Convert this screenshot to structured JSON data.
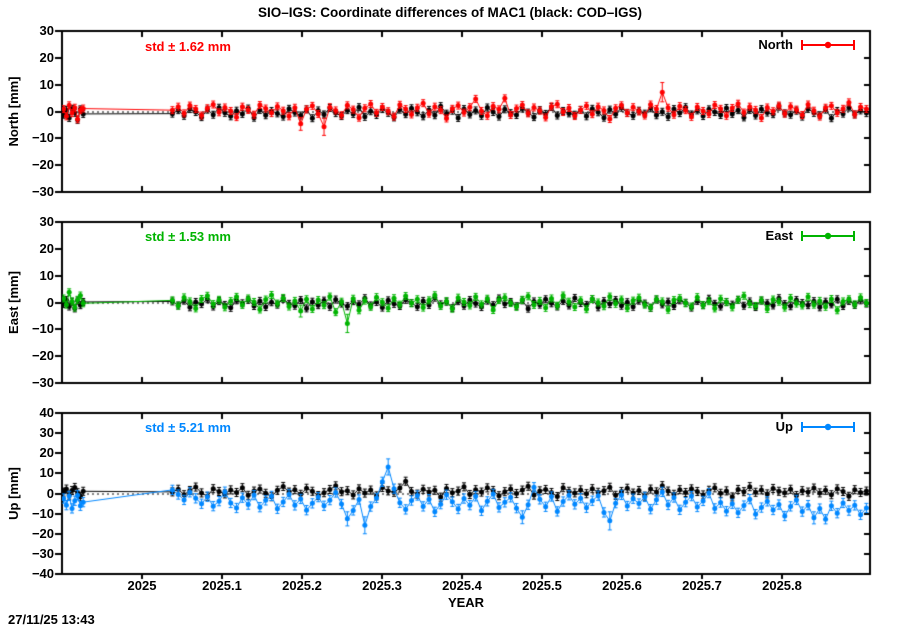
{
  "title": "SIO–IGS: Coordinate differences of MAC1 (black: COD–IGS)",
  "timestamp": "27/11/25 13:43",
  "xaxis": {
    "label": "YEAR",
    "range": [
      2024.9,
      2025.91
    ],
    "tick_values": [
      2025,
      2025.1,
      2025.2,
      2025.3,
      2025.4,
      2025.5,
      2025.6,
      2025.7,
      2025.8
    ],
    "tick_labels": [
      "2025",
      "2025.1",
      "2025.2",
      "2025.3",
      "2025.4",
      "2025.5",
      "2025.6",
      "2025.7",
      "2025.8"
    ]
  },
  "chart_data": [
    {
      "type": "scatter",
      "style": "connected points with error bars",
      "ylabel": "North [mm]",
      "std": 1.62,
      "std_label": "std ± 1.62 mm",
      "legend_label": "North",
      "color": "#ff0000",
      "ylim": [
        -30,
        30
      ],
      "ytick_values": [
        30,
        20,
        10,
        0,
        -10,
        -20,
        -30
      ],
      "ytick_labels": [
        "30",
        "20",
        "10",
        "0",
        "−10",
        "−20",
        "−30"
      ],
      "series": [
        {
          "name": "COD-IGS",
          "color": "#000000",
          "err_default": 1.3,
          "err_overrides": {},
          "early": {
            "x0": 2024.902,
            "dx": 0.0035,
            "y": [
              -1.2,
              0.6,
              -2.4,
              1.0,
              -0.5,
              -3.1,
              0.8,
              -0.9
            ]
          },
          "main": {
            "x0": 2025.038,
            "dx": 0.00729,
            "y": [
              -0.8,
              0.5,
              -1.6,
              0.9,
              -0.2,
              -2.1,
              0.7,
              -1.2,
              1.4,
              -0.5,
              -1.8,
              0.3,
              -0.9,
              1.1,
              -2.3,
              0.6,
              -1.4,
              0.2,
              -0.7,
              -1.9,
              1.0,
              -0.4,
              -1.5,
              0.8,
              -2.5,
              0.4,
              -1.1,
              1.3,
              -0.6,
              -1.7,
              0.5,
              -0.9,
              1.6,
              -2.0,
              0.1,
              -1.3,
              0.9,
              -0.5,
              -2.2,
              0.7,
              -1.0,
              1.2,
              -0.3,
              -1.8,
              0.6,
              -1.4,
              2.0,
              -0.8,
              0.3,
              -2.4,
              0.9,
              -1.1,
              0.4,
              -1.6,
              1.5,
              -0.2,
              -1.9,
              0.8,
              -0.6,
              -1.3,
              1.1,
              -0.4,
              -2.1,
              0.5,
              -0.9,
              1.7,
              -1.5,
              0.2,
              -0.7,
              -1.2,
              0.6,
              -1.8,
              1.0,
              -0.3,
              -2.3,
              0.7,
              -1.0,
              1.4,
              -0.5,
              -1.6,
              0.3,
              -0.8,
              1.2,
              -1.4,
              -0.1,
              -2.0,
              0.9,
              -0.6,
              1.6,
              -1.1,
              0.4,
              -1.7,
              0.8,
              -0.2,
              -1.3,
              1.3,
              -0.9,
              0.5,
              -2.2,
              0.6,
              -1.5,
              0.9,
              -0.4,
              -1.0,
              1.8,
              -0.7,
              -1.2,
              0.3,
              -1.9,
              1.0,
              -0.5,
              -1.4,
              0.7,
              -2.5,
              0.2,
              -0.8,
              1.5,
              -1.1,
              0.4,
              -0.6
            ]
          }
        },
        {
          "name": "SIO-IGS",
          "color": "#ff0000",
          "err_default": 1.3,
          "err_overrides": {
            "22": 2.4,
            "26": 3.2,
            "84": 3.6
          },
          "early": {
            "x0": 2024.902,
            "dx": 0.0035,
            "y": [
              0.9,
              -1.8,
              2.3,
              -0.6,
              1.4,
              -2.9,
              0.5,
              1.1
            ]
          },
          "main": {
            "x0": 2025.038,
            "dx": 0.00729,
            "y": [
              0.5,
              1.8,
              -0.7,
              2.2,
              0.9,
              -1.5,
              1.2,
              2.6,
              -0.3,
              1.5,
              0.2,
              -2.1,
              1.8,
              0.6,
              -1.2,
              2.4,
              1.1,
              -0.6,
              1.9,
              0.3,
              -1.8,
              1.4,
              -4.6,
              0.8,
              2.1,
              -0.9,
              -5.7,
              1.6,
              0.4,
              -1.4,
              2.3,
              0.7,
              -2.3,
              1.2,
              2.8,
              -0.5,
              1.7,
              0.1,
              -1.9,
              2.5,
              0.9,
              -1.1,
              1.4,
              3.1,
              -0.8,
              1.8,
              0.5,
              -2.6,
              1.0,
              2.2,
              -0.4,
              1.6,
              4.7,
              0.2,
              -1.6,
              2.0,
              0.8,
              4.9,
              -1.3,
              1.1,
              2.4,
              -0.7,
              1.5,
              0.3,
              -2.2,
              1.9,
              2.7,
              -0.2,
              1.3,
              -1.7,
              0.6,
              2.1,
              -1.0,
              1.8,
              0.4,
              -2.8,
              1.2,
              2.3,
              -0.6,
              1.6,
              0.0,
              -1.5,
              2.6,
              0.9,
              7.2,
              1.4,
              -1.2,
              2.0,
              0.5,
              -2.0,
              1.7,
              0.2,
              -0.9,
              2.4,
              1.0,
              -1.6,
              1.3,
              2.9,
              -0.4,
              1.8,
              0.6,
              -2.4,
              1.5,
              0.1,
              2.2,
              -0.8,
              1.9,
              0.7,
              -1.3,
              2.6,
              0.3,
              -1.9,
              1.4,
              2.1,
              -0.5,
              1.0,
              3.4,
              -1.1,
              1.7,
              0.9
            ]
          }
        }
      ]
    },
    {
      "type": "scatter",
      "style": "connected points with error bars",
      "ylabel": "East [mm]",
      "std": 1.53,
      "std_label": "std ± 1.53 mm",
      "legend_label": "East",
      "color": "#00b400",
      "ylim": [
        -30,
        30
      ],
      "ytick_values": [
        30,
        20,
        10,
        0,
        -10,
        -20,
        -30
      ],
      "ytick_labels": [
        "30",
        "20",
        "10",
        "0",
        "−10",
        "−20",
        "−30"
      ],
      "series": [
        {
          "name": "COD-IGS",
          "color": "#000000",
          "err_default": 1.3,
          "err_overrides": {},
          "early": {
            "x0": 2024.902,
            "dx": 0.0035,
            "y": [
              -0.6,
              0.9,
              -1.5,
              0.3,
              -2.2,
              0.7,
              -1.0,
              0.2
            ]
          },
          "main": {
            "x0": 2025.038,
            "dx": 0.00729,
            "y": [
              0.4,
              -1.1,
              0.7,
              -1.8,
              0.2,
              -0.6,
              1.2,
              -1.5,
              0.5,
              -0.9,
              -2.0,
              0.8,
              -0.3,
              1.0,
              -1.3,
              0.6,
              -1.7,
              0.1,
              -0.8,
              1.4,
              -0.5,
              -1.2,
              0.9,
              -2.2,
              0.3,
              -1.0,
              0.7,
              -1.6,
              1.1,
              -0.4,
              -1.4,
              0.5,
              -0.7,
              1.6,
              -1.1,
              0.2,
              -1.9,
              0.8,
              -0.5,
              -1.3,
              1.0,
              -0.2,
              -1.6,
              0.6,
              -0.9,
              1.8,
              -0.7,
              0.3,
              -2.1,
              0.5,
              -1.2,
              0.9,
              -0.4,
              -1.7,
              0.7,
              -1.0,
              1.5,
              -0.6,
              0.2,
              -1.4,
              0.8,
              -2.3,
              0.4,
              -0.8,
              1.2,
              -0.3,
              -1.5,
              0.6,
              -1.1,
              1.7,
              -0.2,
              -0.9,
              1.3,
              -1.8,
              0.5,
              -0.6,
              0.9,
              -1.2,
              0.1,
              -1.6,
              0.7,
              -0.4,
              -2.0,
              1.1,
              -0.7,
              0.3,
              -1.3,
              0.8,
              -0.1,
              -1.9,
              0.6,
              -1.0,
              1.4,
              -0.5,
              -1.5,
              0.2,
              -0.8,
              1.0,
              -1.2,
              0.4,
              -1.7,
              0.7,
              -0.3,
              -1.1,
              1.6,
              -0.6,
              -1.4,
              0.9,
              -0.2,
              -1.0,
              0.5,
              -1.8,
              0.3,
              -0.7,
              1.2,
              -1.3,
              0.6,
              -0.9,
              0.8,
              -0.4
            ]
          }
        },
        {
          "name": "SIO-IGS",
          "color": "#00b400",
          "err_default": 1.3,
          "err_overrides": {
            "22": 2.2,
            "30": 3.4
          },
          "early": {
            "x0": 2024.902,
            "dx": 0.0035,
            "y": [
              1.5,
              -0.8,
              3.8,
              0.4,
              -1.9,
              1.0,
              2.6,
              -0.3
            ]
          },
          "main": {
            "x0": 2025.038,
            "dx": 0.00729,
            "y": [
              0.8,
              -1.2,
              1.9,
              0.4,
              -2.2,
              1.3,
              2.5,
              -0.6,
              1.0,
              -1.8,
              0.5,
              2.1,
              -0.9,
              1.5,
              0.2,
              -2.6,
              1.1,
              2.8,
              -0.4,
              1.7,
              -1.5,
              0.6,
              -3.2,
              1.2,
              -2.4,
              0.9,
              -1.0,
              2.2,
              -3.6,
              0.3,
              -7.8,
              1.4,
              -2.9,
              0.7,
              -1.6,
              2.0,
              0.1,
              -2.1,
              1.6,
              -0.8,
              2.4,
              -0.3,
              1.2,
              -1.9,
              0.8,
              2.7,
              -1.3,
              0.5,
              -2.3,
              1.8,
              0.2,
              -1.1,
              2.1,
              -0.7,
              1.4,
              -2.8,
              0.9,
              1.9,
              -0.2,
              -1.6,
              1.0,
              2.3,
              -0.9,
              0.6,
              -2.0,
              1.5,
              -1.2,
              2.6,
              0.3,
              -1.7,
              0.8,
              -2.5,
              1.3,
              0.0,
              -1.4,
              2.2,
              -0.5,
              1.1,
              -2.1,
              0.7,
              1.8,
              -0.8,
              -1.9,
              1.2,
              0.4,
              -2.7,
              0.9,
              1.6,
              -0.3,
              -1.5,
              2.0,
              -1.0,
              0.5,
              -2.2,
              1.4,
              0.1,
              -1.8,
              1.0,
              2.5,
              -0.6,
              -1.3,
              0.8,
              -2.4,
              1.1,
              0.3,
              -1.9,
              1.7,
              -0.4,
              -1.1,
              2.1,
              -0.8,
              0.6,
              -1.6,
              1.3,
              -2.9,
              0.4,
              1.2,
              -0.7,
              1.9,
              -0.2
            ]
          }
        }
      ]
    },
    {
      "type": "scatter",
      "style": "connected points with error bars",
      "ylabel": "Up [mm]",
      "std": 5.21,
      "std_label": "std ± 5.21 mm",
      "legend_label": "Up",
      "color": "#0087ff",
      "ylim": [
        -40,
        40
      ],
      "ytick_values": [
        40,
        30,
        20,
        10,
        0,
        -10,
        -20,
        -30,
        -40
      ],
      "ytick_labels": [
        "40",
        "30",
        "20",
        "10",
        "0",
        "−10",
        "−20",
        "−30",
        "−40"
      ],
      "series": [
        {
          "name": "COD-IGS",
          "color": "#000000",
          "err_default": 2.0,
          "err_overrides": {},
          "early": {
            "x0": 2024.902,
            "dx": 0.0035,
            "y": [
              0.7,
              2.2,
              -0.8,
              1.5,
              3.0,
              0.4,
              -1.6,
              1.1
            ]
          },
          "main": {
            "x0": 2025.038,
            "dx": 0.00729,
            "y": [
              0.8,
              2.1,
              -0.6,
              1.5,
              3.2,
              0.3,
              -1.4,
              2.4,
              1.0,
              -0.2,
              1.8,
              0.5,
              2.9,
              -0.9,
              1.2,
              2.2,
              0.1,
              -1.6,
              1.6,
              3.5,
              0.7,
              1.9,
              -0.4,
              2.6,
              1.1,
              -1.0,
              0.4,
              2.0,
              3.8,
              0.9,
              1.4,
              -0.7,
              2.3,
              0.2,
              1.7,
              -1.2,
              3.0,
              1.3,
              0.6,
              2.7,
              6.1,
              1.0,
              -0.3,
              2.1,
              0.8,
              1.6,
              -1.8,
              2.5,
              0.4,
              1.2,
              3.3,
              -0.5,
              1.9,
              0.7,
              2.8,
              1.5,
              -1.1,
              0.9,
              2.2,
              0.0,
              1.7,
              3.6,
              -0.8,
              1.3,
              2.0,
              0.5,
              -1.5,
              2.9,
              1.1,
              0.3,
              1.8,
              -0.1,
              2.4,
              0.6,
              1.4,
              3.1,
              -0.9,
              1.0,
              2.6,
              0.2,
              1.5,
              -1.3,
              2.2,
              0.8,
              3.9,
              1.2,
              -0.4,
              1.9,
              0.5,
              2.3,
              1.0,
              -0.7,
              1.6,
              2.8,
              0.1,
              1.3,
              -1.7,
              2.0,
              0.9,
              3.4,
              0.6,
              1.8,
              -0.2,
              2.5,
              1.1,
              0.4,
              2.1,
              -1.0,
              1.4,
              0.7,
              2.7,
              0.3,
              1.6,
              -0.6,
              2.3,
              1.0,
              -1.4,
              1.9,
              0.5,
              1.2
            ]
          }
        },
        {
          "name": "SIO-IGS",
          "color": "#0087ff",
          "err_default": 2.3,
          "err_overrides": {
            "30": 3.5,
            "33": 4.2,
            "37": 4.0,
            "60": 3.2,
            "75": 4.5,
            "110": 3.0
          },
          "early": {
            "x0": 2024.902,
            "dx": 0.0035,
            "y": [
              -2.5,
              -5.8,
              -1.2,
              -7.4,
              -3.6,
              -0.9,
              -6.1,
              -4.3
            ]
          },
          "main": {
            "x0": 2025.038,
            "dx": 0.00729,
            "y": [
              1.8,
              -0.5,
              -3.2,
              0.6,
              -2.4,
              -5.1,
              -1.6,
              -6.3,
              -3.8,
              0.9,
              -4.7,
              -7.2,
              -2.1,
              -5.5,
              -0.8,
              -6.8,
              -3.4,
              -1.2,
              -7.6,
              -4.2,
              -0.4,
              -5.9,
              -2.7,
              -8.3,
              -4.9,
              -1.8,
              -6.1,
              -3.3,
              0.5,
              -5.2,
              -12.6,
              -8.4,
              -3.0,
              -15.8,
              -6.5,
              -2.2,
              5.8,
              13.2,
              2.4,
              -4.6,
              -7.9,
              -3.5,
              -1.0,
              -6.4,
              -2.8,
              -9.1,
              -5.3,
              -0.6,
              -4.1,
              -7.7,
              -2.5,
              -5.8,
              -1.4,
              -8.6,
              -3.9,
              -0.2,
              -6.9,
              -4.4,
              -1.9,
              -7.3,
              -11.8,
              -5.6,
              3.1,
              -2.9,
              -6.6,
              -1.5,
              -8.9,
              -4.0,
              -0.9,
              -5.4,
              -2.3,
              -7.1,
              -3.6,
              -1.1,
              -9.4,
              -13.6,
              -4.8,
              -0.7,
              -6.2,
              -2.6,
              -5.0,
              -1.7,
              -7.8,
              -3.1,
              0.8,
              -5.7,
              -2.0,
              -8.1,
              -4.3,
              -1.3,
              -6.7,
              -3.7,
              0.2,
              -7.4,
              -4.5,
              -8.8,
              -5.1,
              -9.6,
              -6.0,
              -2.8,
              -10.3,
              -7.0,
              -3.9,
              -8.2,
              -5.5,
              -11.2,
              -6.4,
              -3.2,
              -9.0,
              -5.8,
              -12.1,
              -7.5,
              -12.8,
              -6.1,
              -9.8,
              -4.7,
              -8.5,
              -5.9,
              -10.6,
              -7.2
            ]
          }
        }
      ]
    }
  ]
}
